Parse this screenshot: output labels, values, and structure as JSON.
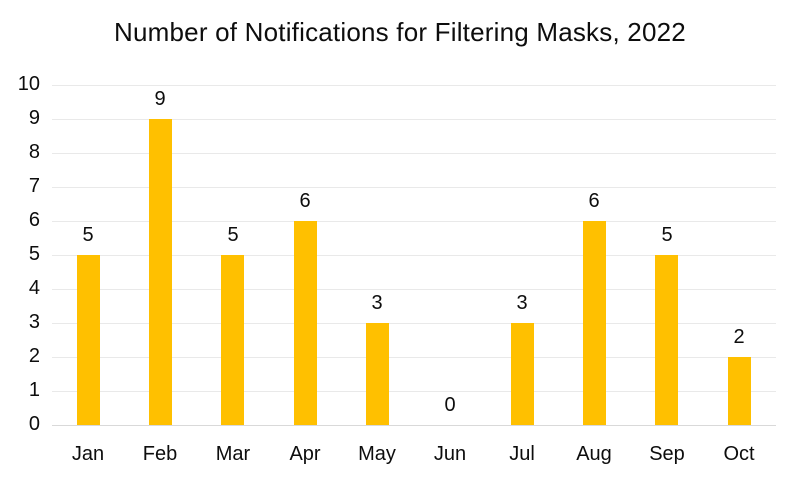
{
  "chart_data": {
    "type": "bar",
    "title": "Number of Notifications for Filtering Masks, 2022",
    "categories": [
      "Jan",
      "Feb",
      "Mar",
      "Apr",
      "May",
      "Jun",
      "Jul",
      "Aug",
      "Sep",
      "Oct"
    ],
    "values": [
      5,
      9,
      5,
      6,
      3,
      0,
      3,
      6,
      5,
      2
    ],
    "xlabel": "",
    "ylabel": "",
    "ylim": [
      0,
      10
    ],
    "yticks": [
      0,
      1,
      2,
      3,
      4,
      5,
      6,
      7,
      8,
      9,
      10
    ],
    "grid": true,
    "legend": false,
    "data_labels": true,
    "colors": {
      "bar": "#FFC000",
      "text": "#0d0d0d",
      "gridline": "#E9E9E9",
      "axis_line": "#D9D9D9",
      "background": "#FFFFFF"
    }
  }
}
